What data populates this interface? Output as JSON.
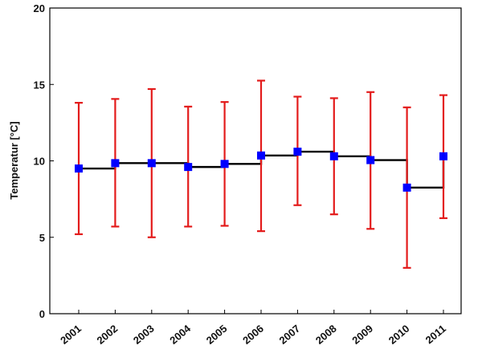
{
  "chart_data": {
    "type": "line",
    "title": "",
    "xlabel": "",
    "ylabel": "Temperatur [°C]",
    "categories": [
      "2001",
      "2002",
      "2003",
      "2004",
      "2005",
      "2006",
      "2007",
      "2008",
      "2009",
      "2010",
      "2011"
    ],
    "ylim": [
      0,
      20
    ],
    "yticks": [
      "0",
      "5",
      "10",
      "15",
      "20"
    ],
    "grid": false,
    "series": [
      {
        "mean": [
          9.5,
          9.85,
          9.85,
          9.6,
          9.8,
          10.35,
          10.6,
          10.3,
          10.05,
          8.25,
          10.3
        ],
        "upper": [
          13.8,
          14.05,
          14.7,
          13.55,
          13.85,
          15.25,
          14.2,
          14.1,
          14.5,
          13.5,
          14.3
        ],
        "lower": [
          5.2,
          5.7,
          5.0,
          5.7,
          5.75,
          5.4,
          7.1,
          6.5,
          5.55,
          3.0,
          6.25
        ]
      }
    ],
    "colors": {
      "marker": "#0000ff",
      "error_bar": "#e31b1b",
      "step_line": "#000000"
    }
  }
}
